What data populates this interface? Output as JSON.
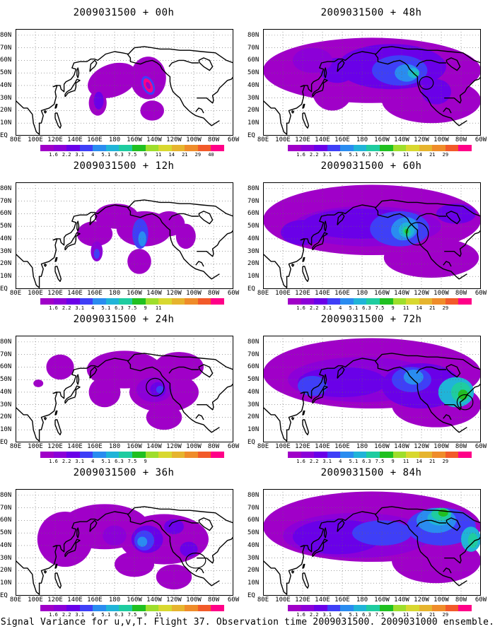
{
  "caption": "Signal Variance for u,v,T. Flight 37. Observation time 2009031500. 2009031000 ensemble.",
  "colorbar": {
    "levels": [
      "1.6",
      "2.2",
      "3.1",
      "4",
      "5.1",
      "6.3",
      "7.5",
      "9",
      "11",
      "14",
      "21",
      "29",
      "40"
    ],
    "colors": [
      "#a000c8",
      "#8c00d8",
      "#6a00e8",
      "#3f3ff7",
      "#2a8cf0",
      "#20b4d8",
      "#1fcca0",
      "#20c020",
      "#9ede2c",
      "#d8d830",
      "#e6b42e",
      "#ef8c2a",
      "#f25a2a",
      "#ff0088"
    ]
  },
  "x_tick_labels": [
    "80E",
    "100E",
    "120E",
    "140E",
    "160E",
    "180",
    "160W",
    "140W",
    "120W",
    "100W",
    "80W",
    "60W"
  ],
  "y_tick_labels": [
    "EQ",
    "10N",
    "20N",
    "30N",
    "40N",
    "50N",
    "60N",
    "70N",
    "80N"
  ],
  "panels": [
    {
      "id": "t00",
      "title": "2009031500 + 00h",
      "max_level": "40",
      "lead_hours": 0
    },
    {
      "id": "t48",
      "title": "2009031500 + 48h",
      "max_level": "9",
      "lead_hours": 48
    },
    {
      "id": "t12",
      "title": "2009031500 + 12h",
      "max_level": "5.1",
      "lead_hours": 12
    },
    {
      "id": "t60",
      "title": "2009031500 + 60h",
      "max_level": "9",
      "lead_hours": 60
    },
    {
      "id": "t24",
      "title": "2009031500 + 24h",
      "max_level": "4",
      "lead_hours": 24
    },
    {
      "id": "t72",
      "title": "2009031500 + 72h",
      "max_level": "9",
      "lead_hours": 72
    },
    {
      "id": "t36",
      "title": "2009031500 + 36h",
      "max_level": "5.1",
      "lead_hours": 36
    },
    {
      "id": "t84",
      "title": "2009031500 + 84h",
      "max_level": "9",
      "lead_hours": 84
    }
  ],
  "chart_data": {
    "type": "heatmap",
    "variable": "Signal Variance for u,v,T",
    "projection": "lat-lon",
    "xlim": [
      "80E",
      "60W"
    ],
    "ylim": [
      "EQ",
      "80N"
    ],
    "grid": true,
    "colorbar_levels": [
      1.6,
      2.2,
      3.1,
      4,
      5.1,
      6.3,
      7.5,
      9,
      11,
      14,
      21,
      29,
      40
    ],
    "panel_titles": [
      "2009031500 + 00h",
      "2009031500 + 48h",
      "2009031500 + 12h",
      "2009031500 + 60h",
      "2009031500 + 24h",
      "2009031500 + 72h",
      "2009031500 + 36h",
      "2009031500 + 84h"
    ]
  }
}
